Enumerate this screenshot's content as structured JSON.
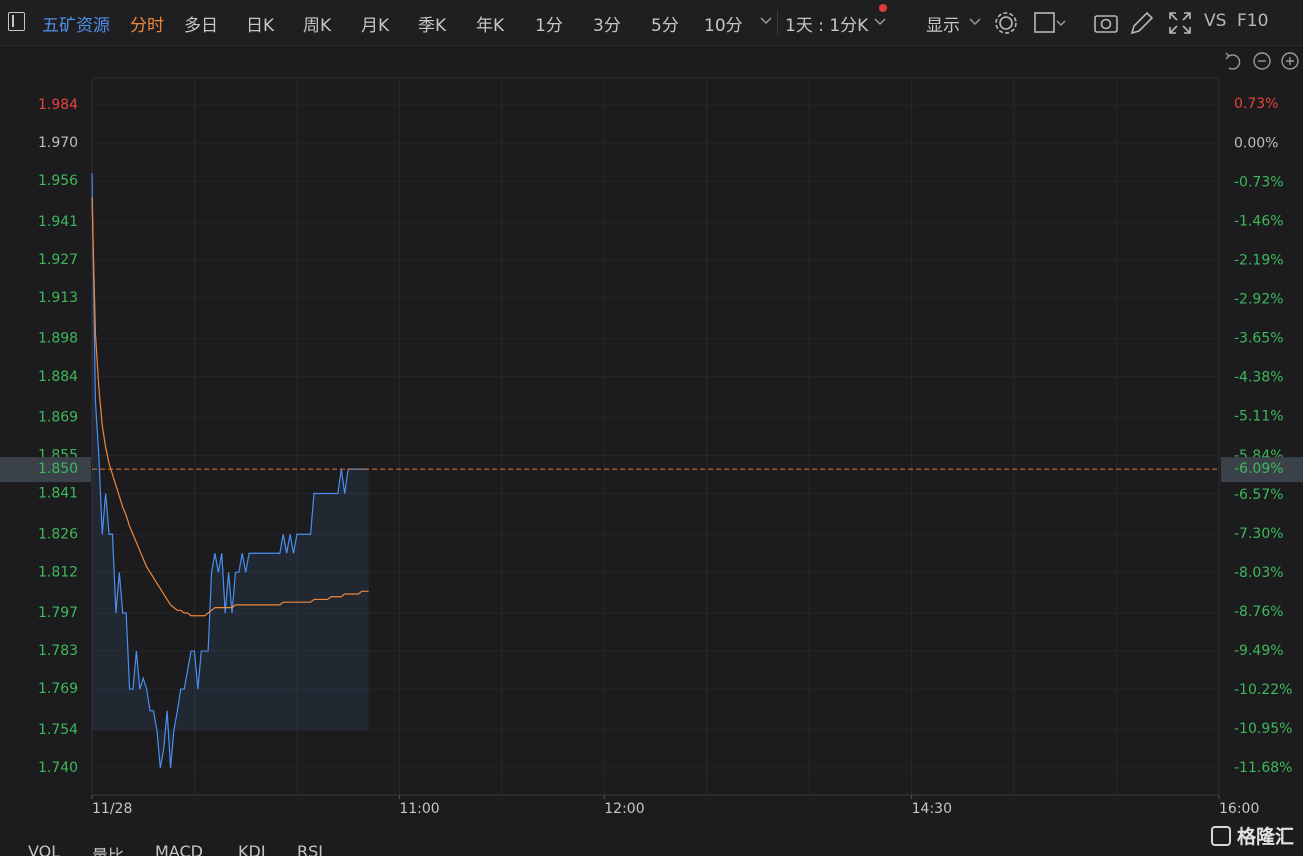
{
  "toolbar": {
    "stock": "五矿资源",
    "tabs": [
      {
        "label": "分时",
        "active": true
      },
      {
        "label": "多日",
        "active": false
      },
      {
        "label": "日K",
        "active": false
      },
      {
        "label": "周K",
        "active": false
      },
      {
        "label": "月K",
        "active": false
      },
      {
        "label": "季K",
        "active": false
      },
      {
        "label": "年K",
        "active": false
      },
      {
        "label": "1分",
        "active": false
      },
      {
        "label": "3分",
        "active": false
      },
      {
        "label": "5分",
        "active": false
      },
      {
        "label": "10分",
        "active": false
      }
    ],
    "range": "1天 : 1分K",
    "display": "显示",
    "vs": "VS",
    "f10": "F10"
  },
  "indicators": [
    "VOL",
    "量比",
    "MACD",
    "KDJ",
    "RSI"
  ],
  "watermark": "格隆汇",
  "chart_data": {
    "type": "line",
    "x": [
      0,
      1,
      2,
      3,
      4,
      5,
      6,
      7,
      8,
      9,
      10,
      11,
      12,
      13,
      14,
      15,
      16,
      17,
      18,
      19,
      20,
      21,
      22,
      23,
      24,
      25,
      26,
      27,
      28,
      29,
      30,
      31,
      32,
      33,
      34,
      35,
      36,
      37,
      38,
      39,
      40,
      41,
      42,
      43,
      44,
      45,
      46,
      47,
      48,
      49,
      50,
      51,
      52,
      53,
      54,
      55,
      56,
      57,
      58,
      59,
      60,
      61,
      62,
      63,
      64,
      65,
      66,
      67,
      68,
      69,
      70,
      71,
      72,
      73,
      74,
      75,
      76,
      77,
      78,
      79,
      80,
      81
    ],
    "series": [
      {
        "color": "#4a8ff0",
        "area": true,
        "values": [
          1.959,
          1.875,
          1.855,
          1.826,
          1.841,
          1.826,
          1.826,
          1.797,
          1.812,
          1.797,
          1.797,
          1.769,
          1.769,
          1.783,
          1.769,
          1.773,
          1.769,
          1.761,
          1.761,
          1.754,
          1.74,
          1.747,
          1.761,
          1.74,
          1.754,
          1.761,
          1.769,
          1.769,
          1.776,
          1.783,
          1.783,
          1.769,
          1.783,
          1.783,
          1.783,
          1.812,
          1.819,
          1.812,
          1.819,
          1.797,
          1.812,
          1.797,
          1.812,
          1.812,
          1.819,
          1.812,
          1.819,
          1.819,
          1.819,
          1.819,
          1.819,
          1.819,
          1.819,
          1.819,
          1.819,
          1.819,
          1.826,
          1.819,
          1.826,
          1.819,
          1.826,
          1.826,
          1.826,
          1.826,
          1.826,
          1.841,
          1.841,
          1.841,
          1.841,
          1.841,
          1.841,
          1.841,
          1.841,
          1.85,
          1.841,
          1.85,
          1.85,
          1.85,
          1.85,
          1.85,
          1.85,
          1.85
        ]
      },
      {
        "color": "#f0873a",
        "area": false,
        "values": [
          1.95,
          1.9,
          1.88,
          1.866,
          1.858,
          1.852,
          1.848,
          1.844,
          1.84,
          1.836,
          1.833,
          1.829,
          1.826,
          1.823,
          1.82,
          1.817,
          1.814,
          1.812,
          1.81,
          1.808,
          1.806,
          1.804,
          1.802,
          1.8,
          1.799,
          1.798,
          1.798,
          1.797,
          1.797,
          1.796,
          1.796,
          1.796,
          1.796,
          1.796,
          1.797,
          1.798,
          1.799,
          1.799,
          1.799,
          1.799,
          1.799,
          1.799,
          1.8,
          1.8,
          1.8,
          1.8,
          1.8,
          1.8,
          1.8,
          1.8,
          1.8,
          1.8,
          1.8,
          1.8,
          1.8,
          1.8,
          1.801,
          1.801,
          1.801,
          1.801,
          1.801,
          1.801,
          1.801,
          1.801,
          1.801,
          1.802,
          1.802,
          1.802,
          1.802,
          1.802,
          1.803,
          1.803,
          1.803,
          1.803,
          1.804,
          1.804,
          1.804,
          1.804,
          1.804,
          1.805,
          1.805,
          1.805
        ]
      }
    ],
    "xlim": [
      0,
      330
    ],
    "xticks": [
      {
        "value": 0,
        "label": "11/28"
      },
      {
        "value": 90,
        "label": "11:00"
      },
      {
        "value": 150,
        "label": "12:00"
      },
      {
        "value": 240,
        "label": "14:30"
      },
      {
        "value": 330,
        "label": "16:00"
      }
    ],
    "x_grid": [
      30,
      60,
      90,
      120,
      150,
      180,
      210,
      240,
      270,
      300
    ],
    "ylim": [
      1.73,
      1.994
    ],
    "yticks": [
      {
        "value": 1.984,
        "label": "1.984"
      },
      {
        "value": 1.97,
        "label": "1.970"
      },
      {
        "value": 1.956,
        "label": "1.956"
      },
      {
        "value": 1.941,
        "label": "1.941"
      },
      {
        "value": 1.927,
        "label": "1.927"
      },
      {
        "value": 1.913,
        "label": "1.913"
      },
      {
        "value": 1.898,
        "label": "1.898"
      },
      {
        "value": 1.884,
        "label": "1.884"
      },
      {
        "value": 1.869,
        "label": "1.869"
      },
      {
        "value": 1.855,
        "label": "1.855"
      },
      {
        "value": 1.841,
        "label": "1.841"
      },
      {
        "value": 1.826,
        "label": "1.826"
      },
      {
        "value": 1.812,
        "label": "1.812"
      },
      {
        "value": 1.797,
        "label": "1.797"
      },
      {
        "value": 1.783,
        "label": "1.783"
      },
      {
        "value": 1.769,
        "label": "1.769"
      },
      {
        "value": 1.754,
        "label": "1.754"
      },
      {
        "value": 1.74,
        "label": "1.740"
      }
    ],
    "baseline": 1.97,
    "y2lim": [
      -12.18,
      1.22
    ],
    "y2ticks": [
      {
        "value": 0.73,
        "label": "0.73%"
      },
      {
        "value": 0,
        "label": "0.00%"
      },
      {
        "value": -0.73,
        "label": "-0.73%"
      },
      {
        "value": -1.46,
        "label": "-1.46%"
      },
      {
        "value": -2.19,
        "label": "-2.19%"
      },
      {
        "value": -2.92,
        "label": "-2.92%"
      },
      {
        "value": -3.65,
        "label": "-3.65%"
      },
      {
        "value": -4.38,
        "label": "-4.38%"
      },
      {
        "value": -5.11,
        "label": "-5.11%"
      },
      {
        "value": -5.84,
        "label": "-5.84%"
      },
      {
        "value": -6.57,
        "label": "-6.57%"
      },
      {
        "value": -7.3,
        "label": "-7.30%"
      },
      {
        "value": -8.03,
        "label": "-8.03%"
      },
      {
        "value": -8.76,
        "label": "-8.76%"
      },
      {
        "value": -9.49,
        "label": "-9.49%"
      },
      {
        "value": -10.22,
        "label": "-10.22%"
      },
      {
        "value": -10.95,
        "label": "-10.95%"
      },
      {
        "value": -11.68,
        "label": "-11.68%"
      }
    ],
    "last_price": 1.85,
    "last_price_label": "1.850",
    "last_pct": -6.09,
    "last_pct_label": "-6.09%",
    "grid": true
  }
}
